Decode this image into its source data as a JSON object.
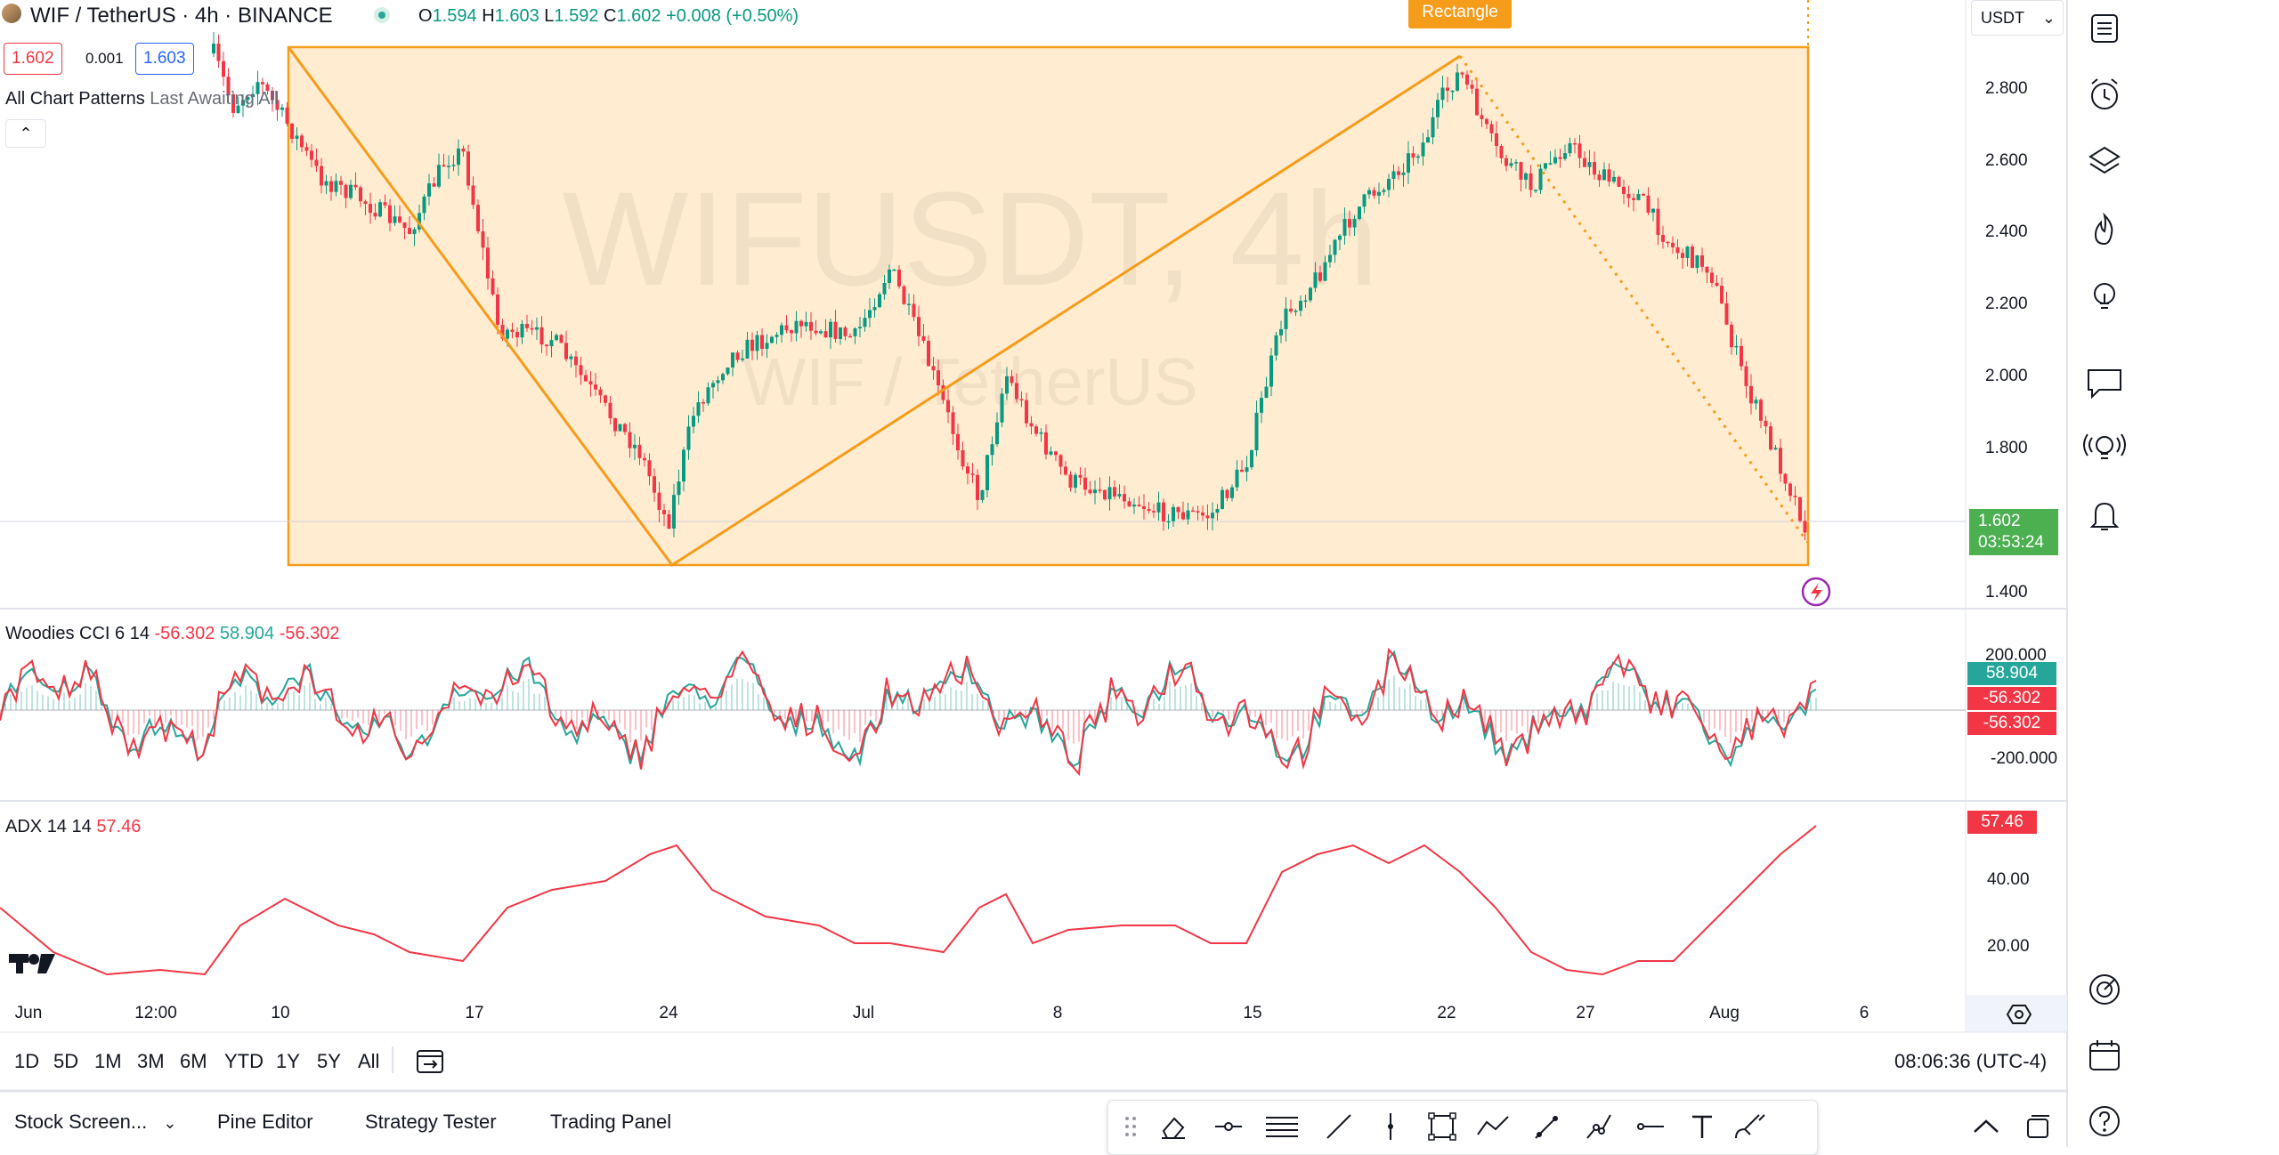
{
  "header": {
    "symbol_title": "WIF / TetherUS · 4h · BINANCE",
    "o_label": "O",
    "o_value": "1.594",
    "h_label": "H",
    "h_value": "1.603",
    "l_label": "L",
    "l_value": "1.592",
    "c_label": "C",
    "c_value": "1.602",
    "change": "+0.008 (+0.50%)",
    "sell_price": "1.602",
    "spread": "0.001",
    "buy_price": "1.603",
    "pattern_indicator": "All Chart Patterns",
    "pattern_args": "Last Awaiting All",
    "currency": "USDT"
  },
  "watermark": {
    "line1": "WIFUSDT, 4h",
    "line2": "WIF / TetherUS"
  },
  "pattern": {
    "label": "Rectangle",
    "color": "#f59c1a",
    "fill": "#ffe0b3"
  },
  "price_axis": {
    "labels": [
      "2.800",
      "2.600",
      "2.400",
      "2.200",
      "2.000",
      "1.800",
      "1.400"
    ],
    "current_price": "1.602",
    "countdown": "03:53:24",
    "current_color": "#4caf50"
  },
  "cci": {
    "name": "Woodies CCI",
    "args": "6 14",
    "v1": "-56.302",
    "v2": "58.904",
    "v3": "-56.302",
    "axis": [
      "200.000",
      "-200.000"
    ],
    "badge1": "58.904",
    "badge2": "-56.302",
    "badge3": "-56.302",
    "color_green": "#26a69a",
    "color_red": "#f23645"
  },
  "adx": {
    "name": "ADX",
    "args": "14 14",
    "value": "57.46",
    "axis": [
      "40.00",
      "20.00"
    ],
    "badge": "57.46",
    "color": "#f23645"
  },
  "time_axis": [
    "Jun",
    "12:00",
    "10",
    "17",
    "24",
    "Jul",
    "8",
    "15",
    "22",
    "27",
    "Aug",
    "6"
  ],
  "timeframes": [
    "1D",
    "5D",
    "1M",
    "3M",
    "6M",
    "YTD",
    "1Y",
    "5Y",
    "All"
  ],
  "clock": "08:06:36 (UTC-4)",
  "bottom_tabs": [
    "Stock Screen...",
    "Pine Editor",
    "Strategy Tester",
    "Trading Panel"
  ],
  "icons": {
    "right_sidebar": [
      "watchlist-icon",
      "alarm-clock-icon",
      "layers-icon",
      "fire-icon",
      "lightbulb-icon",
      "chat-icon",
      "broadcast-idea-icon",
      "bell-icon",
      "target-icon",
      "calendar-icon",
      "help-icon"
    ],
    "drawing": [
      "grip-icon",
      "eraser-icon",
      "point-line-icon",
      "horizontal-lines-icon",
      "trend-line-icon",
      "vertical-line-icon",
      "rectangle-icon",
      "zigzag-icon",
      "arrow-line-icon",
      "path-icon",
      "horizontal-ray-icon",
      "text-icon",
      "brush-icon"
    ]
  }
}
